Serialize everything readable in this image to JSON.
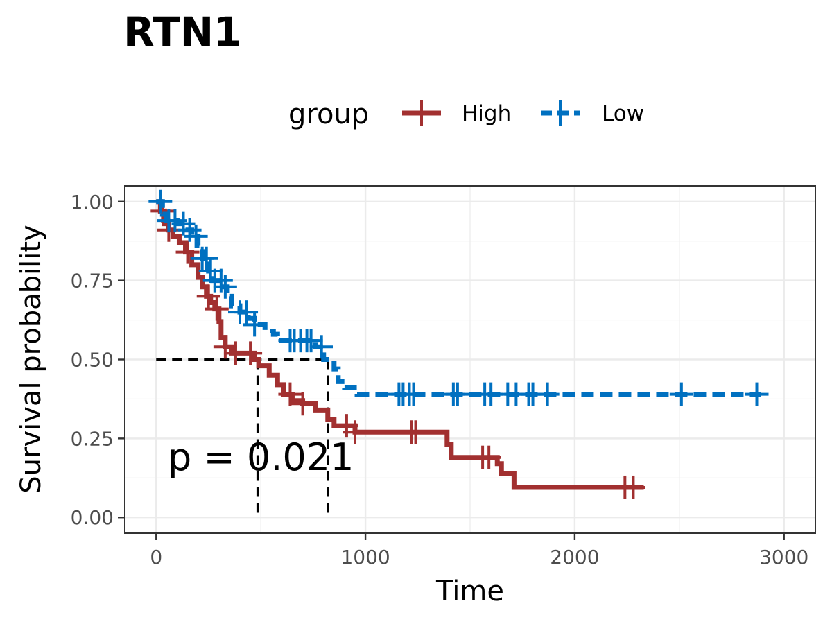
{
  "chart_data": {
    "type": "line",
    "title": "RTN1",
    "xlabel": "Time",
    "ylabel": "Survival probability",
    "xlim": [
      -150,
      3150
    ],
    "ylim": [
      -0.05,
      1.05
    ],
    "x_ticks": [
      0,
      1000,
      2000,
      3000
    ],
    "x_tick_labels": [
      "0",
      "1000",
      "2000",
      "3000"
    ],
    "y_ticks": [
      0,
      0.25,
      0.5,
      0.75,
      1.0
    ],
    "y_tick_labels": [
      "0.00",
      "0.25",
      "0.50",
      "0.75",
      "1.00"
    ],
    "grid": true,
    "legend": {
      "title": "group",
      "position": "top",
      "entries": [
        "High",
        "Low"
      ]
    },
    "annotation": "p = 0.021",
    "median_lines": {
      "y": 0.5,
      "x_values": [
        485,
        820
      ]
    },
    "series": [
      {
        "name": "High",
        "color": "#a23030",
        "line_style": "solid",
        "steps": [
          [
            0,
            1.0
          ],
          [
            20,
            0.97
          ],
          [
            40,
            0.93
          ],
          [
            60,
            0.91
          ],
          [
            80,
            0.89
          ],
          [
            110,
            0.87
          ],
          [
            140,
            0.84
          ],
          [
            170,
            0.8
          ],
          [
            200,
            0.76
          ],
          [
            220,
            0.73
          ],
          [
            240,
            0.7
          ],
          [
            260,
            0.68
          ],
          [
            280,
            0.66
          ],
          [
            300,
            0.62
          ],
          [
            310,
            0.57
          ],
          [
            330,
            0.54
          ],
          [
            360,
            0.52
          ],
          [
            470,
            0.5
          ],
          [
            490,
            0.48
          ],
          [
            540,
            0.45
          ],
          [
            580,
            0.42
          ],
          [
            610,
            0.39
          ],
          [
            650,
            0.37
          ],
          [
            700,
            0.36
          ],
          [
            760,
            0.34
          ],
          [
            820,
            0.31
          ],
          [
            850,
            0.29
          ],
          [
            950,
            0.27
          ],
          [
            1390,
            0.23
          ],
          [
            1410,
            0.19
          ],
          [
            1630,
            0.17
          ],
          [
            1650,
            0.14
          ],
          [
            1710,
            0.095
          ],
          [
            2330,
            0.095
          ]
        ],
        "censor_times": [
          30,
          60,
          150,
          250,
          290,
          330,
          380,
          450,
          640,
          700,
          910,
          950,
          1220,
          1240,
          1560,
          1590,
          2240,
          2280
        ]
      },
      {
        "name": "Low",
        "color": "#0070c0",
        "line_style": "dashed",
        "steps": [
          [
            0,
            1.0
          ],
          [
            30,
            0.96
          ],
          [
            50,
            0.94
          ],
          [
            100,
            0.93
          ],
          [
            140,
            0.91
          ],
          [
            170,
            0.89
          ],
          [
            200,
            0.86
          ],
          [
            220,
            0.82
          ],
          [
            250,
            0.78
          ],
          [
            270,
            0.75
          ],
          [
            320,
            0.73
          ],
          [
            340,
            0.7
          ],
          [
            360,
            0.67
          ],
          [
            400,
            0.65
          ],
          [
            440,
            0.63
          ],
          [
            470,
            0.61
          ],
          [
            520,
            0.59
          ],
          [
            560,
            0.58
          ],
          [
            580,
            0.56
          ],
          [
            760,
            0.54
          ],
          [
            800,
            0.5
          ],
          [
            850,
            0.47
          ],
          [
            870,
            0.43
          ],
          [
            900,
            0.41
          ],
          [
            960,
            0.39
          ],
          [
            2890,
            0.39
          ]
        ],
        "censor_times": [
          20,
          60,
          90,
          130,
          160,
          190,
          220,
          240,
          260,
          280,
          310,
          330,
          400,
          430,
          470,
          640,
          660,
          690,
          720,
          740,
          790,
          1160,
          1180,
          1210,
          1230,
          1420,
          1440,
          1570,
          1600,
          1680,
          1720,
          1780,
          1800,
          1870,
          2510,
          2870
        ]
      }
    ]
  }
}
